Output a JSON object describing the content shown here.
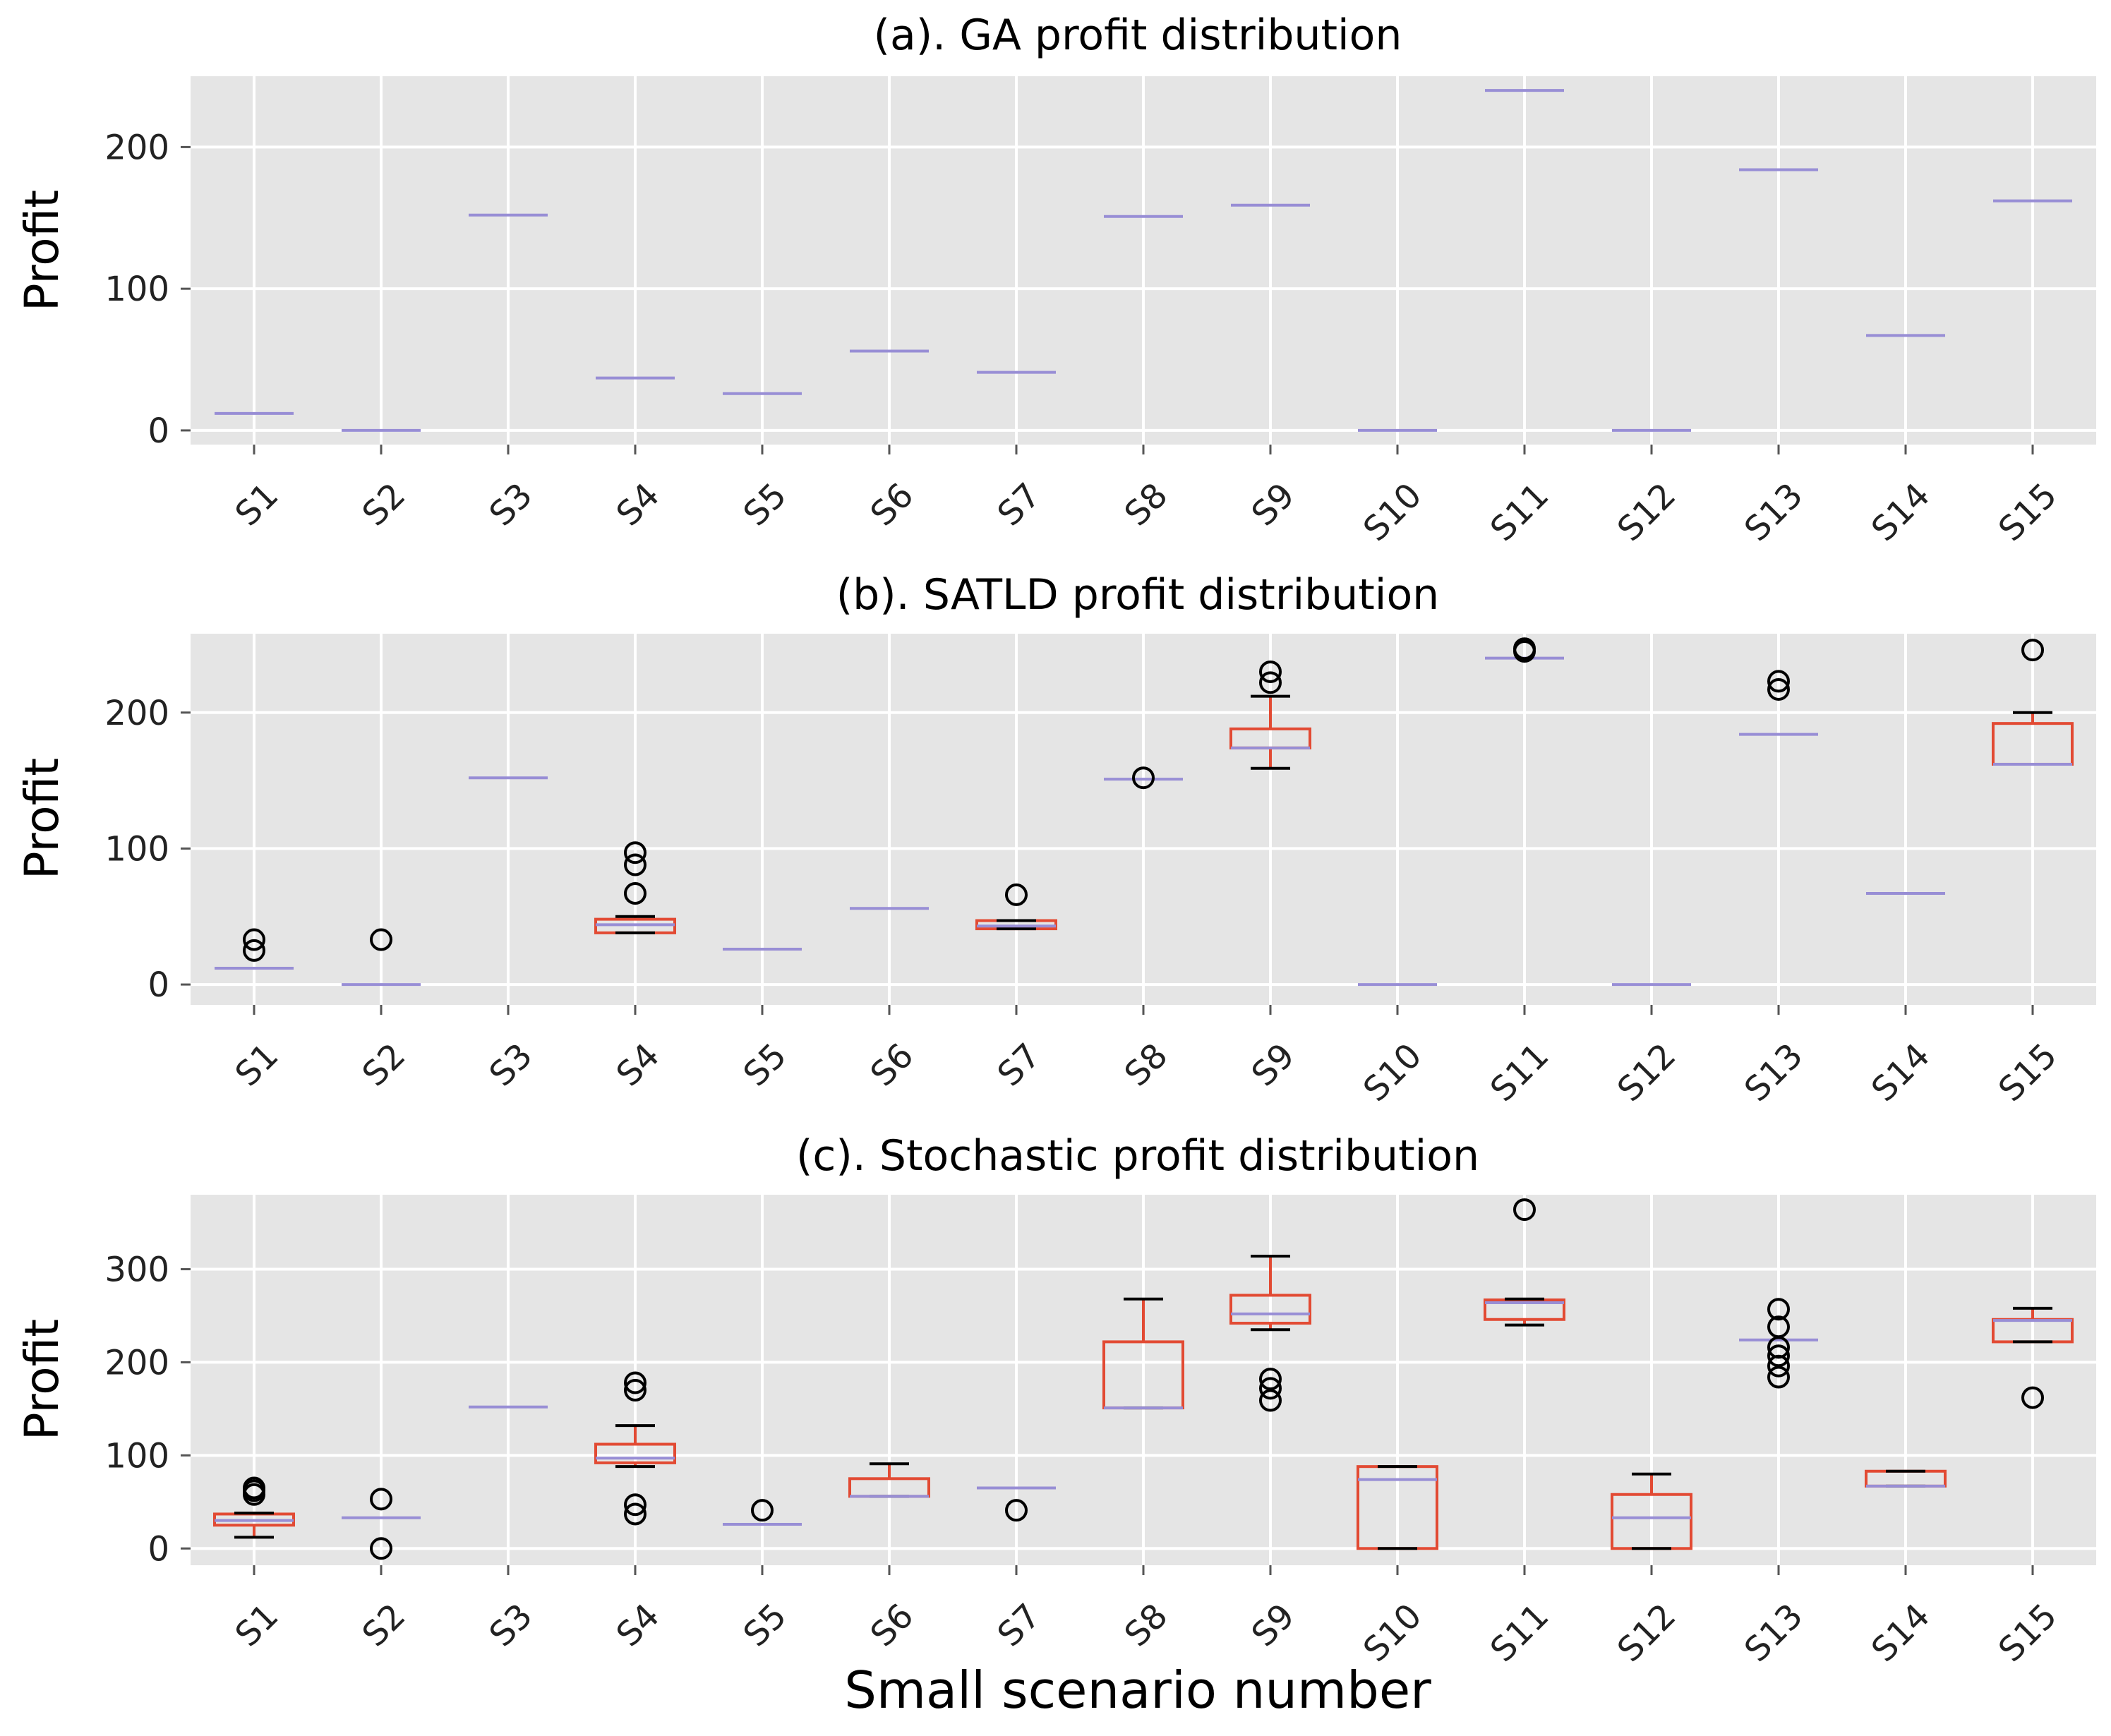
{
  "chart_data": [
    {
      "type": "box",
      "title": "(a). GA profit distribution",
      "ylabel": "Profit",
      "xlabel": "",
      "ylim": [
        -10,
        250
      ],
      "yticks": [
        0,
        100,
        200
      ],
      "categories": [
        "S1",
        "S2",
        "S3",
        "S4",
        "S5",
        "S6",
        "S7",
        "S8",
        "S9",
        "S10",
        "S11",
        "S12",
        "S13",
        "S14",
        "S15"
      ],
      "boxes": [
        {
          "label": "S1",
          "q1": 12,
          "median": 12,
          "q3": 12,
          "whislo": 12,
          "whishi": 12,
          "fliers": []
        },
        {
          "label": "S2",
          "q1": 0,
          "median": 0,
          "q3": 0,
          "whislo": 0,
          "whishi": 0,
          "fliers": []
        },
        {
          "label": "S3",
          "q1": 152,
          "median": 152,
          "q3": 152,
          "whislo": 152,
          "whishi": 152,
          "fliers": []
        },
        {
          "label": "S4",
          "q1": 37,
          "median": 37,
          "q3": 37,
          "whislo": 37,
          "whishi": 37,
          "fliers": []
        },
        {
          "label": "S5",
          "q1": 26,
          "median": 26,
          "q3": 26,
          "whislo": 26,
          "whishi": 26,
          "fliers": []
        },
        {
          "label": "S6",
          "q1": 56,
          "median": 56,
          "q3": 56,
          "whislo": 56,
          "whishi": 56,
          "fliers": []
        },
        {
          "label": "S7",
          "q1": 41,
          "median": 41,
          "q3": 41,
          "whislo": 41,
          "whishi": 41,
          "fliers": []
        },
        {
          "label": "S8",
          "q1": 151,
          "median": 151,
          "q3": 151,
          "whislo": 151,
          "whishi": 151,
          "fliers": []
        },
        {
          "label": "S9",
          "q1": 159,
          "median": 159,
          "q3": 159,
          "whislo": 159,
          "whishi": 159,
          "fliers": []
        },
        {
          "label": "S10",
          "q1": 0,
          "median": 0,
          "q3": 0,
          "whislo": 0,
          "whishi": 0,
          "fliers": []
        },
        {
          "label": "S11",
          "q1": 240,
          "median": 240,
          "q3": 240,
          "whislo": 240,
          "whishi": 240,
          "fliers": []
        },
        {
          "label": "S12",
          "q1": 0,
          "median": 0,
          "q3": 0,
          "whislo": 0,
          "whishi": 0,
          "fliers": []
        },
        {
          "label": "S13",
          "q1": 184,
          "median": 184,
          "q3": 184,
          "whislo": 184,
          "whishi": 184,
          "fliers": []
        },
        {
          "label": "S14",
          "q1": 67,
          "median": 67,
          "q3": 67,
          "whislo": 67,
          "whishi": 67,
          "fliers": []
        },
        {
          "label": "S15",
          "q1": 162,
          "median": 162,
          "q3": 162,
          "whislo": 162,
          "whishi": 162,
          "fliers": []
        }
      ]
    },
    {
      "type": "box",
      "title": "(b). SATLD profit distribution",
      "ylabel": "Profit",
      "xlabel": "",
      "ylim": [
        -15,
        258
      ],
      "yticks": [
        0,
        100,
        200
      ],
      "categories": [
        "S1",
        "S2",
        "S3",
        "S4",
        "S5",
        "S6",
        "S7",
        "S8",
        "S9",
        "S10",
        "S11",
        "S12",
        "S13",
        "S14",
        "S15"
      ],
      "boxes": [
        {
          "label": "S1",
          "q1": 12,
          "median": 12,
          "q3": 12,
          "whislo": 12,
          "whishi": 12,
          "fliers": [
            25,
            33
          ]
        },
        {
          "label": "S2",
          "q1": 0,
          "median": 0,
          "q3": 0,
          "whislo": 0,
          "whishi": 0,
          "fliers": [
            33
          ]
        },
        {
          "label": "S3",
          "q1": 152,
          "median": 152,
          "q3": 152,
          "whislo": 152,
          "whishi": 152,
          "fliers": []
        },
        {
          "label": "S4",
          "q1": 38,
          "median": 44,
          "q3": 48,
          "whislo": 38,
          "whishi": 50,
          "fliers": [
            67,
            88,
            97
          ]
        },
        {
          "label": "S5",
          "q1": 26,
          "median": 26,
          "q3": 26,
          "whislo": 26,
          "whishi": 26,
          "fliers": []
        },
        {
          "label": "S6",
          "q1": 56,
          "median": 56,
          "q3": 56,
          "whislo": 56,
          "whishi": 56,
          "fliers": []
        },
        {
          "label": "S7",
          "q1": 41,
          "median": 43,
          "q3": 47,
          "whislo": 41,
          "whishi": 47,
          "fliers": [
            66
          ]
        },
        {
          "label": "S8",
          "q1": 151,
          "median": 151,
          "q3": 151,
          "whislo": 151,
          "whishi": 151,
          "fliers": [
            152
          ]
        },
        {
          "label": "S9",
          "q1": 174,
          "median": 174,
          "q3": 188,
          "whislo": 159,
          "whishi": 212,
          "fliers": [
            222,
            230
          ]
        },
        {
          "label": "S10",
          "q1": 0,
          "median": 0,
          "q3": 0,
          "whislo": 0,
          "whishi": 0,
          "fliers": []
        },
        {
          "label": "S11",
          "q1": 240,
          "median": 240,
          "q3": 240,
          "whislo": 240,
          "whishi": 240,
          "fliers": [
            245,
            247
          ]
        },
        {
          "label": "S12",
          "q1": 0,
          "median": 0,
          "q3": 0,
          "whislo": 0,
          "whishi": 0,
          "fliers": []
        },
        {
          "label": "S13",
          "q1": 184,
          "median": 184,
          "q3": 184,
          "whislo": 184,
          "whishi": 184,
          "fliers": [
            217,
            223
          ]
        },
        {
          "label": "S14",
          "q1": 67,
          "median": 67,
          "q3": 67,
          "whislo": 67,
          "whishi": 67,
          "fliers": []
        },
        {
          "label": "S15",
          "q1": 162,
          "median": 162,
          "q3": 192,
          "whislo": 162,
          "whishi": 200,
          "fliers": [
            246
          ]
        }
      ]
    },
    {
      "type": "box",
      "title": "(c). Stochastic profit distribution",
      "ylabel": "Profit",
      "xlabel": "Small scenario number",
      "ylim": [
        -18,
        380
      ],
      "yticks": [
        0,
        100,
        200,
        300
      ],
      "categories": [
        "S1",
        "S2",
        "S3",
        "S4",
        "S5",
        "S6",
        "S7",
        "S8",
        "S9",
        "S10",
        "S11",
        "S12",
        "S13",
        "S14",
        "S15"
      ],
      "boxes": [
        {
          "label": "S1",
          "q1": 25,
          "median": 30,
          "q3": 37,
          "whislo": 12,
          "whishi": 38,
          "fliers": [
            58,
            62,
            65
          ]
        },
        {
          "label": "S2",
          "q1": 33,
          "median": 33,
          "q3": 33,
          "whislo": 33,
          "whishi": 33,
          "fliers": [
            0,
            53
          ]
        },
        {
          "label": "S3",
          "q1": 152,
          "median": 152,
          "q3": 152,
          "whislo": 152,
          "whishi": 152,
          "fliers": []
        },
        {
          "label": "S4",
          "q1": 92,
          "median": 97,
          "q3": 112,
          "whislo": 88,
          "whishi": 132,
          "fliers": [
            37,
            47,
            170,
            178
          ]
        },
        {
          "label": "S5",
          "q1": 26,
          "median": 26,
          "q3": 26,
          "whislo": 26,
          "whishi": 26,
          "fliers": [
            41
          ]
        },
        {
          "label": "S6",
          "q1": 56,
          "median": 56,
          "q3": 75,
          "whislo": 56,
          "whishi": 91,
          "fliers": []
        },
        {
          "label": "S7",
          "q1": 65,
          "median": 65,
          "q3": 65,
          "whislo": 65,
          "whishi": 65,
          "fliers": [
            41
          ]
        },
        {
          "label": "S8",
          "q1": 151,
          "median": 151,
          "q3": 222,
          "whislo": 151,
          "whishi": 268,
          "fliers": []
        },
        {
          "label": "S9",
          "q1": 242,
          "median": 252,
          "q3": 272,
          "whislo": 235,
          "whishi": 314,
          "fliers": [
            159,
            172,
            182
          ]
        },
        {
          "label": "S10",
          "q1": 0,
          "median": 74,
          "q3": 88,
          "whislo": 0,
          "whishi": 88,
          "fliers": []
        },
        {
          "label": "S11",
          "q1": 246,
          "median": 264,
          "q3": 267,
          "whislo": 240,
          "whishi": 268,
          "fliers": [
            364
          ]
        },
        {
          "label": "S12",
          "q1": 0,
          "median": 33,
          "q3": 58,
          "whislo": 0,
          "whishi": 80,
          "fliers": []
        },
        {
          "label": "S13",
          "q1": 224,
          "median": 224,
          "q3": 224,
          "whislo": 224,
          "whishi": 224,
          "fliers": [
            184,
            196,
            207,
            216,
            238,
            257
          ]
        },
        {
          "label": "S14",
          "q1": 67,
          "median": 67,
          "q3": 83,
          "whislo": 67,
          "whishi": 83,
          "fliers": []
        },
        {
          "label": "S15",
          "q1": 222,
          "median": 245,
          "q3": 246,
          "whislo": 222,
          "whishi": 258,
          "fliers": [
            162
          ]
        }
      ]
    }
  ],
  "colors": {
    "background": "#ffffff",
    "panel": "#e5e5e5",
    "grid": "#ffffff",
    "box": "#e24a33",
    "median": "#988ed5",
    "whisker_cap": "#000000",
    "flier": "#000000"
  }
}
